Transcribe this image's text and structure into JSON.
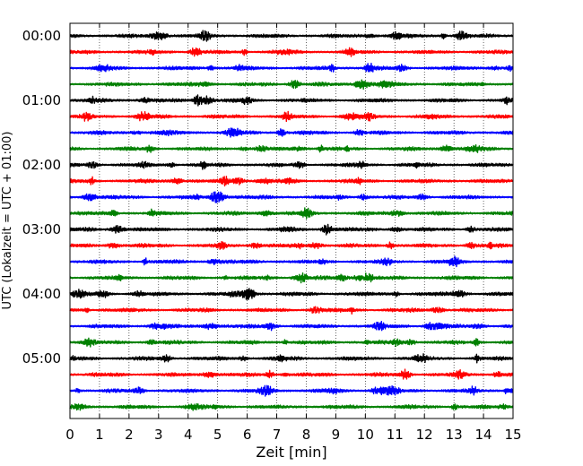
{
  "chart_data": {
    "type": "line",
    "subtype": "helicorder-seismogram",
    "xlabel": "Zeit  [min]",
    "ylabel": "UTC (Lokalzeit = UTC + 01:00)",
    "xlim": [
      0,
      15
    ],
    "x_ticks": [
      0,
      1,
      2,
      3,
      4,
      5,
      6,
      7,
      8,
      9,
      10,
      11,
      12,
      13,
      14,
      15
    ],
    "x_tick_labels": [
      "0",
      "1",
      "2",
      "3",
      "4",
      "5",
      "6",
      "7",
      "8",
      "9",
      "10",
      "11",
      "12",
      "13",
      "14",
      "15"
    ],
    "y_tick_labels": [
      "00:00",
      "01:00",
      "02:00",
      "03:00",
      "04:00",
      "05:00"
    ],
    "trace_interval_min": 15,
    "trace_count": 24,
    "trace_colors": [
      "#000000",
      "#ff0000",
      "#0000ff",
      "#008000"
    ],
    "grid": {
      "x": true,
      "style": "dotted"
    }
  }
}
